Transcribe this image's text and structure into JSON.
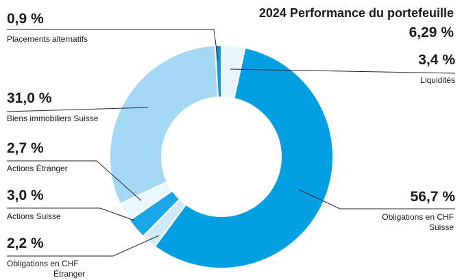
{
  "chart_data": {
    "type": "pie",
    "variant": "donut",
    "title": "2024 Performance du portefeuille",
    "total_label": "6,29 %",
    "slices": [
      {
        "name": "Liquidités",
        "value": 3.4,
        "value_label": "3,4 %",
        "color": "#e6f4fc"
      },
      {
        "name": "Obligations en CHF Suisse",
        "value": 56.7,
        "value_label": "56,7 %",
        "color": "#00a0e3"
      },
      {
        "name": "Obligations en CHF Étranger",
        "value": 2.2,
        "value_label": "2,2 %",
        "color": "#cfe9f7"
      },
      {
        "name": "Actions Suisse",
        "value": 3.0,
        "value_label": "3,0 %",
        "color": "#1aa6e6"
      },
      {
        "name": "Actions Étranger",
        "value": 2.7,
        "value_label": "2,7 %",
        "color": "#eaf6fd"
      },
      {
        "name": "Biens immobiliers Suisse",
        "value": 31.0,
        "value_label": "31,0 %",
        "color": "#a4d8f5"
      },
      {
        "name": "Placements alternatifs",
        "value": 0.9,
        "value_label": "0,9 %",
        "color": "#1296d8"
      }
    ],
    "label_texts": {
      "liquidites": "Liquidités",
      "oblig_suisse_line1": "Obligations en CHF",
      "oblig_suisse_line2": "Suisse",
      "oblig_etranger_line1": "Obligations en CHF",
      "oblig_etranger_line2": "Étranger",
      "actions_suisse": "Actions Suisse",
      "actions_etranger": "Actions Étranger",
      "immobiliers": "Biens immobiliers Suisse",
      "alternatifs": "Placements alternatifs"
    }
  }
}
